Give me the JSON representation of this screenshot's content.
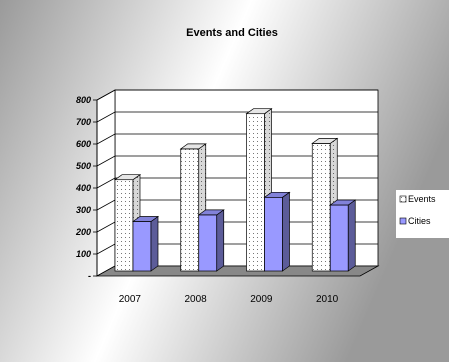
{
  "chart_data": {
    "type": "bar",
    "title": "Events and Cities",
    "categories": [
      "2007",
      "2008",
      "2009",
      "2010"
    ],
    "series": [
      {
        "name": "Events",
        "values": [
          415,
          555,
          715,
          580
        ],
        "color": "#ffffff",
        "pattern": "dotted"
      },
      {
        "name": "Cities",
        "values": [
          225,
          255,
          335,
          300
        ],
        "color": "#9999ff"
      }
    ],
    "ylim": [
      0,
      800
    ],
    "yticks": [
      {
        "value": 0,
        "label": "-"
      },
      {
        "value": 100,
        "label": "100"
      },
      {
        "value": 200,
        "label": "200"
      },
      {
        "value": 300,
        "label": "300"
      },
      {
        "value": 400,
        "label": "400"
      },
      {
        "value": 500,
        "label": "500"
      },
      {
        "value": 600,
        "label": "600"
      },
      {
        "value": 700,
        "label": "700"
      },
      {
        "value": 800,
        "label": "800"
      }
    ],
    "grid": true,
    "legend": "right",
    "background_colors": [
      "#9a9a9a",
      "#ffffff"
    ],
    "floor_color": "#888888"
  }
}
